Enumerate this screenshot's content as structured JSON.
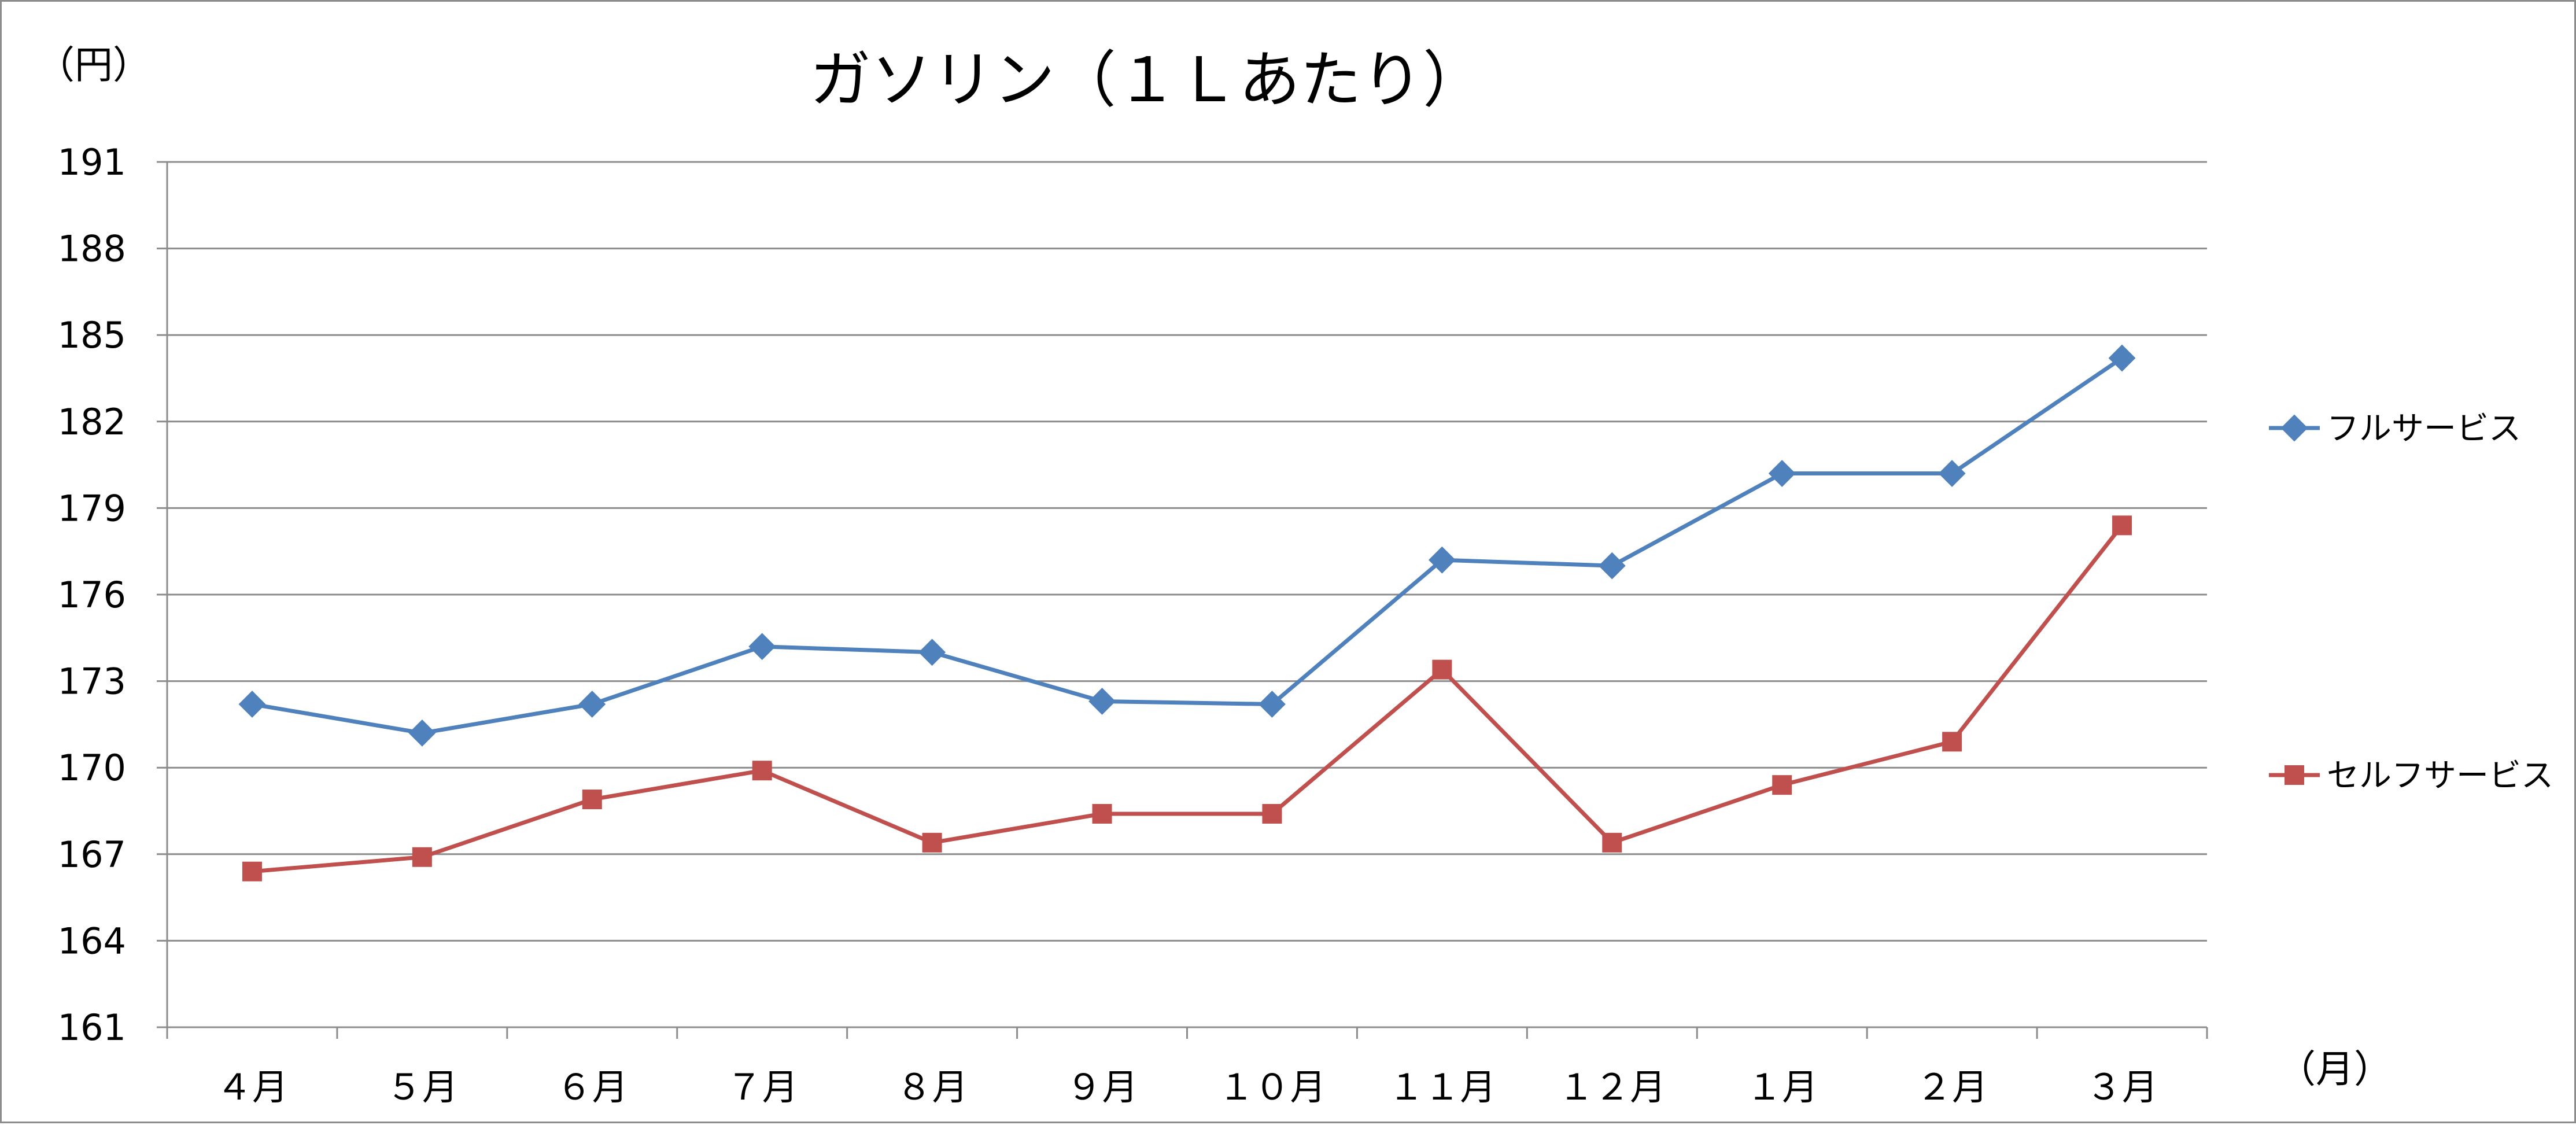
{
  "chart_data": {
    "type": "line",
    "title": "ガソリン（１Ｌあたり）",
    "ylabel": "（円）",
    "xlabel": "（月）",
    "categories": [
      "４月",
      "５月",
      "６月",
      "７月",
      "８月",
      "９月",
      "１０月",
      "１１月",
      "１２月",
      "１月",
      "２月",
      "３月"
    ],
    "ylim": [
      161,
      191
    ],
    "yticks": [
      161,
      164,
      167,
      170,
      173,
      176,
      179,
      182,
      185,
      188,
      191
    ],
    "grid": true,
    "legend_position": "right",
    "series": [
      {
        "name": "フルサービス",
        "color": "#4f81bd",
        "marker": "diamond",
        "values": [
          172.2,
          171.2,
          172.2,
          174.2,
          174.0,
          172.3,
          172.2,
          177.2,
          177.0,
          180.2,
          180.2,
          184.2
        ]
      },
      {
        "name": "セルフサービス",
        "color": "#c0504d",
        "marker": "square",
        "values": [
          166.4,
          166.9,
          168.9,
          169.9,
          167.4,
          168.4,
          168.4,
          173.4,
          167.4,
          169.4,
          170.9,
          178.4
        ]
      }
    ]
  }
}
